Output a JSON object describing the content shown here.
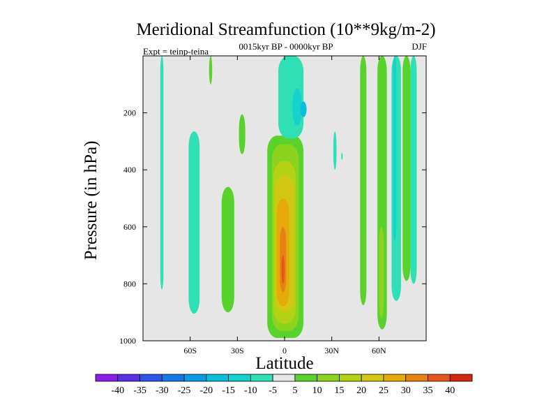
{
  "chart_data": {
    "type": "heatmap",
    "title": "Meridional Streamfunction (10**9kg/m-2)",
    "subtitle": "0015kyr BP - 0000kyr BP",
    "experiment_label": "Expt = teinp-teina",
    "season_label": "DJF",
    "xlabel": "Latitude",
    "ylabel": "Pressure (in hPa)",
    "xlim": [
      -90,
      90
    ],
    "ylim": [
      1000,
      0
    ],
    "x_ticks": [
      {
        "value": -60,
        "label": "60S"
      },
      {
        "value": -30,
        "label": "30S"
      },
      {
        "value": 0,
        "label": "0"
      },
      {
        "value": 30,
        "label": "30N"
      },
      {
        "value": 60,
        "label": "60N"
      }
    ],
    "y_ticks": [
      {
        "value": 200,
        "label": "200"
      },
      {
        "value": 400,
        "label": "400"
      },
      {
        "value": 600,
        "label": "600"
      },
      {
        "value": 800,
        "label": "800"
      },
      {
        "value": 1000,
        "label": "1000"
      }
    ],
    "levels": [
      -40,
      -35,
      -30,
      -25,
      -20,
      -15,
      -10,
      -5,
      5,
      10,
      15,
      20,
      25,
      30,
      35,
      40
    ],
    "colorbar_colors": [
      "#8a1ee6",
      "#5a32e6",
      "#2d55e8",
      "#1478e6",
      "#0a9be6",
      "#0abede",
      "#16d2cc",
      "#2ee0b4",
      "#e6e6e6",
      "#5ad22d",
      "#8cd21e",
      "#b4d214",
      "#d2c814",
      "#e6aa0a",
      "#e68214",
      "#e6551e",
      "#d22814"
    ],
    "features": [
      {
        "name": "cell-sh-upper-left",
        "lat": [
          -79,
          -77
        ],
        "p": [
          0,
          820
        ],
        "value": -7
      },
      {
        "name": "cell-upper-small",
        "lat": [
          -48,
          -46
        ],
        "p": [
          0,
          100
        ],
        "value": 7
      },
      {
        "name": "cell-60s-column",
        "lat": [
          -61,
          -54
        ],
        "p": [
          265,
          905
        ],
        "value": -7
      },
      {
        "name": "cell-30s-low",
        "lat": [
          -40,
          -32
        ],
        "p": [
          460,
          900
        ],
        "value": 7
      },
      {
        "name": "cell-30s-upper",
        "lat": [
          -29,
          -25
        ],
        "p": [
          205,
          345
        ],
        "value": 7
      },
      {
        "name": "cell-equatorial-outer",
        "lat": [
          -11,
          12
        ],
        "p": [
          280,
          990
        ],
        "value": 7
      },
      {
        "name": "cell-equatorial-10",
        "lat": [
          -8,
          9
        ],
        "p": [
          310,
          965
        ],
        "value": 12
      },
      {
        "name": "cell-equatorial-15",
        "lat": [
          -7,
          7
        ],
        "p": [
          370,
          940
        ],
        "value": 17
      },
      {
        "name": "cell-equatorial-20",
        "lat": [
          -6,
          6
        ],
        "p": [
          420,
          900
        ],
        "value": 22
      },
      {
        "name": "cell-equatorial-25",
        "lat": [
          -5,
          3
        ],
        "p": [
          500,
          880
        ],
        "value": 27
      },
      {
        "name": "cell-equatorial-30",
        "lat": [
          -3,
          1
        ],
        "p": [
          600,
          830
        ],
        "value": 32
      },
      {
        "name": "cell-equatorial-35",
        "lat": [
          -2,
          0
        ],
        "p": [
          700,
          800
        ],
        "value": 37
      },
      {
        "name": "cell-upper-tropic-neg",
        "lat": [
          -4,
          12
        ],
        "p": [
          0,
          290
        ],
        "value": -7
      },
      {
        "name": "cell-upper-tropic-neg2",
        "lat": [
          5,
          11
        ],
        "p": [
          115,
          245
        ],
        "value": -12
      },
      {
        "name": "cell-upper-tropic-neg3",
        "lat": [
          10,
          14
        ],
        "p": [
          160,
          215
        ],
        "value": -17
      },
      {
        "name": "cell-30n-neg",
        "lat": [
          31,
          33
        ],
        "p": [
          265,
          400
        ],
        "value": -7
      },
      {
        "name": "cell-30n-neg-dot",
        "lat": [
          36,
          37
        ],
        "p": [
          340,
          365
        ],
        "value": -7
      },
      {
        "name": "cell-50n-pos",
        "lat": [
          48,
          52
        ],
        "p": [
          0,
          875
        ],
        "value": 7
      },
      {
        "name": "cell-60n-pos",
        "lat": [
          59,
          65
        ],
        "p": [
          0,
          960
        ],
        "value": 7
      },
      {
        "name": "cell-60n-pos2",
        "lat": [
          60,
          63
        ],
        "p": [
          600,
          920
        ],
        "value": 12
      },
      {
        "name": "cell-70n-neg",
        "lat": [
          68,
          74
        ],
        "p": [
          0,
          860
        ],
        "value": -7
      },
      {
        "name": "cell-70n-neg2",
        "lat": [
          69,
          71
        ],
        "p": [
          0,
          650
        ],
        "value": -12
      },
      {
        "name": "cell-80n-pos",
        "lat": [
          75,
          80
        ],
        "p": [
          0,
          790
        ],
        "value": 7
      },
      {
        "name": "cell-80n-neg",
        "lat": [
          80,
          84
        ],
        "p": [
          0,
          800
        ],
        "value": -7
      }
    ]
  }
}
